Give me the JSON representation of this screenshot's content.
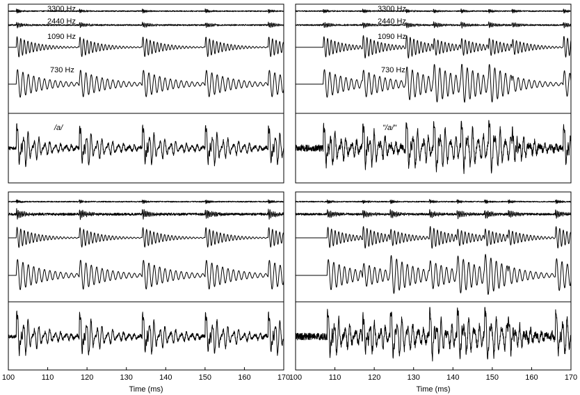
{
  "chart_data": {
    "type": "line",
    "panels": [
      {
        "id": "top-left",
        "band_labels": [
          "3300 Hz",
          "2440 Hz",
          "1090 Hz",
          "730 Hz"
        ],
        "signal_label": "/a/",
        "band_freqs_hz": [
          3300,
          2440,
          1090,
          730
        ],
        "pulse_onsets_ms": [
          102,
          118,
          134,
          150,
          166
        ],
        "signal_type": "voiced-periodic"
      },
      {
        "id": "top-right",
        "band_labels": [
          "3300 Hz",
          "2440 Hz",
          "1090 Hz",
          "730 Hz"
        ],
        "signal_label": "\"/a/\"",
        "band_freqs_hz": [
          3300,
          2440,
          1090,
          730
        ],
        "pulse_onsets_ms": [
          107,
          117,
          128,
          135,
          142,
          149,
          155,
          168
        ],
        "signal_type": "voiced-irregular"
      },
      {
        "id": "bottom-left",
        "band_labels": [],
        "signal_label": "",
        "band_freqs_hz": [
          3300,
          2440,
          1090,
          730
        ],
        "pulse_onsets_ms": [
          102,
          118,
          134,
          150,
          166
        ],
        "signal_type": "voiced-periodic"
      },
      {
        "id": "bottom-right",
        "band_labels": [],
        "signal_label": "",
        "band_freqs_hz": [
          3300,
          2440,
          1090,
          730
        ],
        "pulse_onsets_ms": [
          108,
          117,
          124,
          134,
          141,
          148,
          154,
          166
        ],
        "signal_type": "voiced-irregular"
      }
    ],
    "x_axes": [
      {
        "xlabel": "Time (ms)",
        "xlim": [
          100,
          170
        ],
        "xticks": [
          100,
          110,
          120,
          130,
          140,
          150,
          160,
          170
        ],
        "xtick_labels": [
          "100",
          "110",
          "120",
          "130",
          "140",
          "150",
          "160",
          "170"
        ]
      },
      {
        "xlabel": "Time (ms)",
        "xlim": [
          100,
          170
        ],
        "xticks": [
          100,
          110,
          120,
          130,
          140,
          150,
          160,
          170
        ],
        "xtick_labels": [
          "100",
          "110",
          "120",
          "130",
          "140",
          "150",
          "160",
          "170"
        ]
      }
    ],
    "grid": false,
    "legend": "none"
  }
}
